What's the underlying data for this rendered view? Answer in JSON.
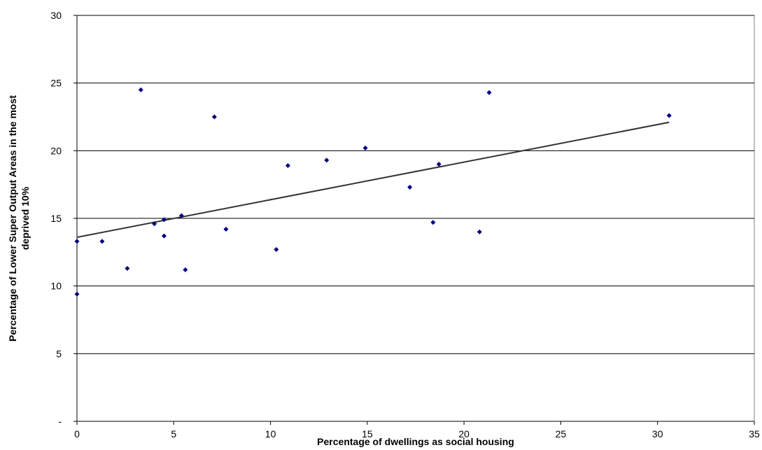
{
  "chart_data": {
    "type": "scatter",
    "title": "",
    "xlabel": "Percentage of dwellings as social housing",
    "ylabel_line1": "Percentage of Lower Super Output Areas in the most",
    "ylabel_line2": "deprived 10%",
    "xlim": [
      0,
      35
    ],
    "ylim": [
      0,
      30
    ],
    "x_ticks": [
      0,
      5,
      10,
      15,
      20,
      25,
      30,
      35
    ],
    "y_ticks": [
      0,
      5,
      10,
      15,
      20,
      25,
      30
    ],
    "y_tick_labels": [
      "-",
      "5",
      "10",
      "15",
      "20",
      "25",
      "30"
    ],
    "grid": "horizontal",
    "series": [
      {
        "color": "#00007f",
        "marker": "diamond",
        "points": [
          [
            0.0,
            13.3
          ],
          [
            0.0,
            9.4
          ],
          [
            1.3,
            13.3
          ],
          [
            2.6,
            11.3
          ],
          [
            3.3,
            24.5
          ],
          [
            4.0,
            14.6
          ],
          [
            4.5,
            14.9
          ],
          [
            4.5,
            13.7
          ],
          [
            5.4,
            15.2
          ],
          [
            5.6,
            11.2
          ],
          [
            7.1,
            22.5
          ],
          [
            7.7,
            14.2
          ],
          [
            10.3,
            12.7
          ],
          [
            10.9,
            18.9
          ],
          [
            12.9,
            19.3
          ],
          [
            14.9,
            20.2
          ],
          [
            17.2,
            17.3
          ],
          [
            18.4,
            14.7
          ],
          [
            18.7,
            19.0
          ],
          [
            20.8,
            14.0
          ],
          [
            21.3,
            24.3
          ],
          [
            30.6,
            22.6
          ]
        ]
      }
    ],
    "trendline": {
      "type": "linear",
      "x_range": [
        0,
        30.6
      ],
      "y_start": 13.6,
      "y_end": 22.1,
      "color": "#333333"
    }
  }
}
